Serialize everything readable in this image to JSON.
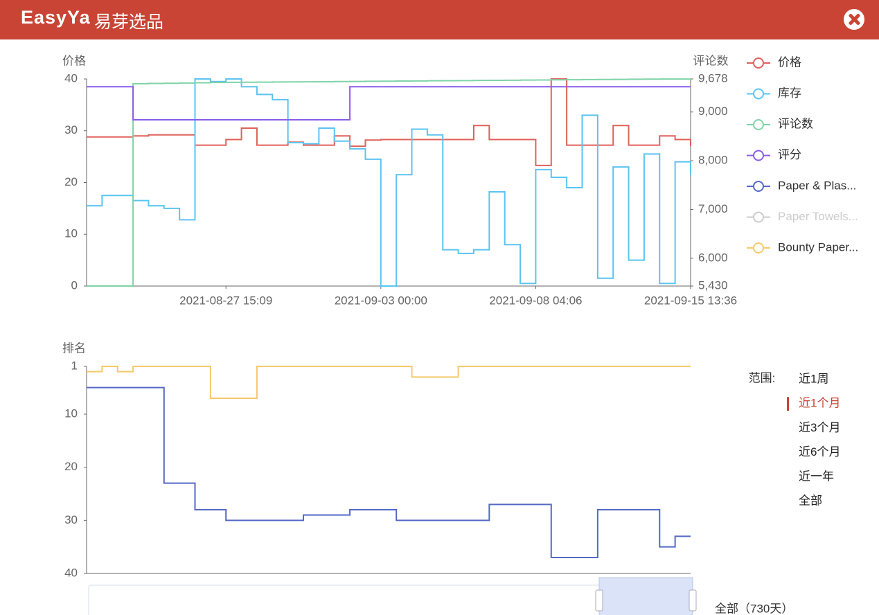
{
  "header": {
    "logo": "EasyYa",
    "brand": "易芽选品"
  },
  "chart_data": [
    {
      "type": "line",
      "step": true,
      "grid": false,
      "y_label": "价格",
      "y2_label": "评论数",
      "categories": [
        null,
        null,
        null,
        null,
        null,
        null,
        null,
        null,
        null,
        "2021-08-27 15:09",
        null,
        null,
        null,
        null,
        null,
        null,
        null,
        null,
        null,
        "2021-09-03 00:00",
        null,
        null,
        null,
        null,
        null,
        null,
        null,
        null,
        null,
        "2021-09-08 04:06",
        null,
        null,
        null,
        null,
        null,
        null,
        null,
        null,
        null,
        "2021-09-15 13:36"
      ],
      "ylim": [
        0,
        40
      ],
      "yticks": [
        0,
        10,
        20,
        30,
        40
      ],
      "y2lim": [
        5430,
        9678
      ],
      "y2ticks": [
        {
          "value": 5430,
          "label": "5,430"
        },
        {
          "value": 6000,
          "label": "6,000"
        },
        {
          "value": 7000,
          "label": "7,000"
        },
        {
          "value": 8000,
          "label": "8,000"
        },
        {
          "value": 9000,
          "label": "9,000"
        },
        {
          "value": 9678,
          "label": "9,678"
        }
      ],
      "series": [
        {
          "name": "价格",
          "color": "#e0605a",
          "values": [
            28.8,
            28.8,
            28.8,
            29,
            29.2,
            29.2,
            29.2,
            27.2,
            27.2,
            28.3,
            30.5,
            27.2,
            27.2,
            27.8,
            27.2,
            27.2,
            29,
            27,
            28.2,
            28.3,
            28.3,
            28.3,
            28.3,
            28.3,
            28.3,
            31,
            28.3,
            28.3,
            28.3,
            23.3,
            40,
            27.2,
            27.2,
            27.2,
            31,
            27.2,
            27.2,
            29,
            28.3,
            27
          ]
        },
        {
          "name": "库存",
          "color": "#5bc4f0",
          "values": [
            15.5,
            17.5,
            17.5,
            16.5,
            15.5,
            15,
            12.8,
            40,
            39.5,
            40,
            38.5,
            37,
            36,
            27.7,
            27.5,
            30.5,
            28,
            26.5,
            24.5,
            0,
            21.5,
            30.3,
            29.2,
            7,
            6.3,
            7,
            18.2,
            8,
            0.5,
            22.5,
            21,
            19,
            33,
            1.5,
            23,
            5,
            25.5,
            0.5,
            24,
            21.5
          ]
        },
        {
          "name": "评论数",
          "color": "#7fd3a7",
          "axis": "y2",
          "values": [
            5430,
            5430,
            5430,
            9580,
            9585,
            9590,
            9595,
            9600,
            9605,
            9608,
            9610,
            9612,
            9615,
            9617,
            9620,
            9622,
            9625,
            9627,
            9630,
            9632,
            9635,
            9637,
            9640,
            9642,
            9645,
            9647,
            9650,
            9652,
            9655,
            9657,
            9660,
            9662,
            9665,
            9667,
            9670,
            9672,
            9675,
            9676,
            9677,
            9678
          ]
        },
        {
          "name": "评分",
          "color": "#8a5ce8",
          "values": [
            38.5,
            38.5,
            38.5,
            32.1,
            32.1,
            32.1,
            32.1,
            32.1,
            32.1,
            32.1,
            32.1,
            32.1,
            32.1,
            32.1,
            32.1,
            32.1,
            32.1,
            38.5,
            38.5,
            38.5,
            38.5,
            38.5,
            38.5,
            38.5,
            38.5,
            38.5,
            38.5,
            38.5,
            38.5,
            38.5,
            38.5,
            38.5,
            38.5,
            38.5,
            38.5,
            38.5,
            38.5,
            38.5,
            38.5,
            38.5
          ]
        }
      ]
    },
    {
      "type": "line",
      "step": true,
      "grid": false,
      "inverse": true,
      "y_label": "排名",
      "ylim": [
        1,
        40
      ],
      "yticks": [
        1,
        10,
        20,
        30,
        40
      ],
      "series": [
        {
          "name": "Paper & Plas...",
          "color": "#5468c6",
          "values": [
            5,
            5,
            5,
            5,
            5,
            23,
            23,
            28,
            28,
            30,
            30,
            30,
            30,
            30,
            29,
            29,
            29,
            28,
            28,
            28,
            30,
            30,
            30,
            30,
            30,
            30,
            27,
            27,
            27,
            27,
            37,
            37,
            37,
            28,
            28,
            28,
            28,
            35,
            33,
            33
          ]
        },
        {
          "name": "Paper Towels...",
          "color": "#cccccc",
          "visible": false,
          "values": [
            null,
            null,
            null,
            null,
            null,
            null,
            null,
            null,
            null,
            null,
            null,
            null,
            null,
            null,
            null,
            null,
            null,
            null,
            null,
            null,
            null,
            null,
            null,
            null,
            null,
            null,
            null,
            null,
            null,
            null,
            null,
            null,
            null,
            null,
            null,
            null,
            null,
            null,
            null,
            null
          ]
        },
        {
          "name": "Bounty Paper...",
          "color": "#f5c96a",
          "values": [
            2,
            1,
            2,
            1,
            1,
            1,
            1,
            1,
            7,
            7,
            7,
            1,
            1,
            1,
            1,
            1,
            1,
            1,
            1,
            1,
            1,
            3,
            3,
            3,
            1,
            1,
            1,
            1,
            1,
            1,
            1,
            1,
            1,
            1,
            1,
            1,
            1,
            1,
            1,
            1
          ]
        }
      ]
    }
  ],
  "range": {
    "label": "范围:",
    "options": [
      "近1周",
      "近1个月",
      "近3个月",
      "近6个月",
      "近一年",
      "全部"
    ],
    "selected": 1
  },
  "zoom": {
    "label": "全部（730天）"
  }
}
